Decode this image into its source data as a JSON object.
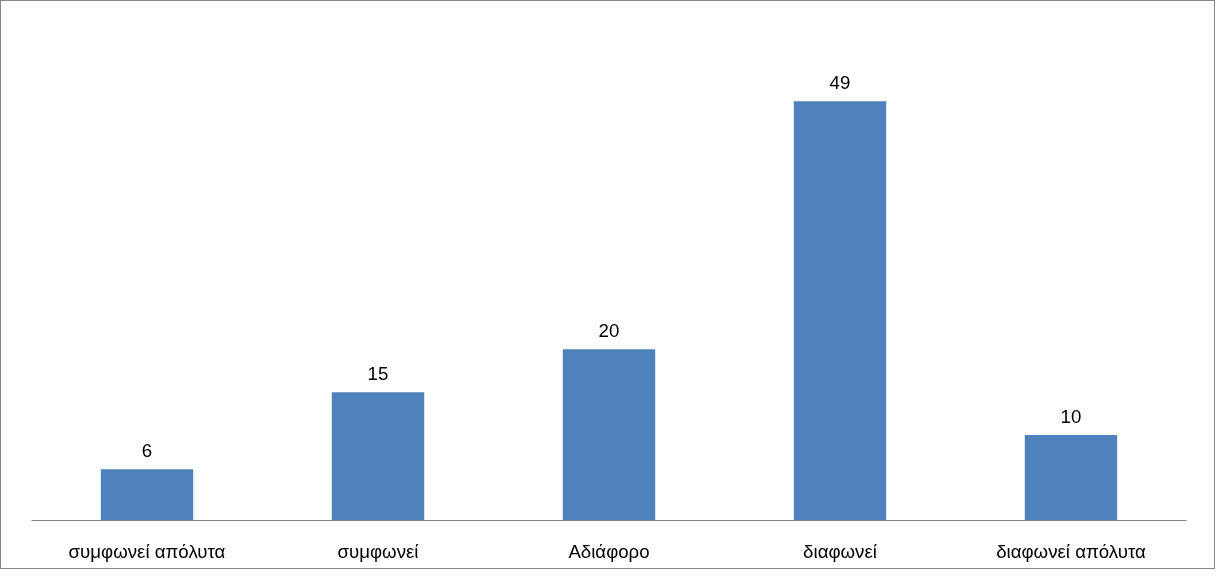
{
  "chart_data": {
    "type": "bar",
    "categories": [
      "συμφωνεί απόλυτα",
      "συμφωνεί",
      "Αδιάφορο",
      "διαφωνεί",
      "διαφωνεί απόλυτα"
    ],
    "values": [
      6,
      15,
      20,
      49,
      10
    ],
    "color": "#4f81bd",
    "data_labels": true
  }
}
